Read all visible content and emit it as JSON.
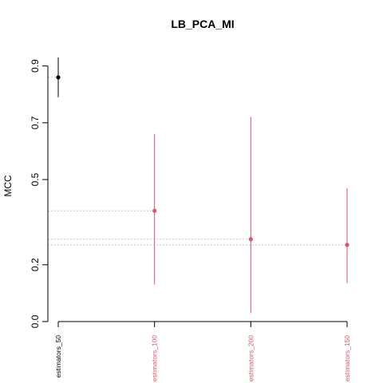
{
  "chart_data": {
    "type": "scatter",
    "title": "LB_PCA_MI",
    "xlabel": "",
    "ylabel": "MCC",
    "ylim": [
      0.0,
      0.93
    ],
    "yticks": [
      0.0,
      0.2,
      0.5,
      0.7,
      0.9
    ],
    "ytick_labels": [
      "0.0",
      "0.2",
      "0.5",
      "0.7",
      "0.9"
    ],
    "grid": false,
    "reference_lines": "dotted horizontal lines at each point estimate",
    "categories": [
      "estimators_50",
      "estimators_100",
      "estimators_200",
      "estimators_150"
    ],
    "points": [
      {
        "label": "estimators_50",
        "value": 0.86,
        "lower": 0.79,
        "upper": 0.93,
        "color": "#000000"
      },
      {
        "label": "estimators_100",
        "value": 0.39,
        "lower": 0.13,
        "upper": 0.66,
        "color": "#DF536B"
      },
      {
        "label": "estimators_200",
        "value": 0.29,
        "lower": 0.03,
        "upper": 0.72,
        "color": "#DF536B"
      },
      {
        "label": "estimators_150",
        "value": 0.27,
        "lower": 0.135,
        "upper": 0.47,
        "color": "#DF536B"
      }
    ]
  }
}
